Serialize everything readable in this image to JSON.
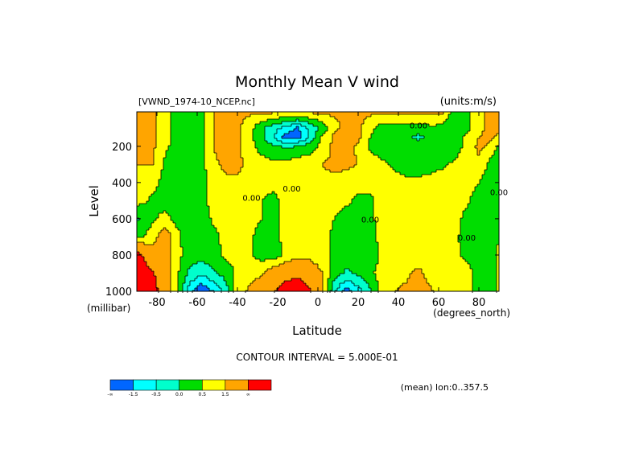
{
  "chart_data": {
    "type": "heatmap",
    "title": "Monthly Mean V wind",
    "dataset_label": "[VWND_1974-10_NCEP.nc]",
    "units_label": "(units:m/s)",
    "xlabel": "Latitude",
    "x_units": "(degrees_north)",
    "ylabel": "Level",
    "y_units": "(millibar)",
    "xlim": [
      -90,
      90
    ],
    "ylim": [
      1000,
      10
    ],
    "x_ticks": [
      -80,
      -60,
      -40,
      -20,
      0,
      20,
      40,
      60,
      80
    ],
    "x_tick_labels": [
      "-80",
      "-60",
      "-40",
      "-20",
      "0",
      "20",
      "40",
      "60",
      "80"
    ],
    "y_ticks": [
      200,
      400,
      600,
      800,
      1000
    ],
    "y_tick_labels": [
      "200",
      "400",
      "600",
      "800",
      "1000"
    ],
    "contour_interval_text": "CONTOUR INTERVAL = 5.000E-01",
    "average_text": "(mean) lon:0..357.5",
    "contour_labels": [
      {
        "text": "0.00",
        "lat": 50,
        "level": 100
      },
      {
        "text": "0.00",
        "lat": -33,
        "level": 500
      },
      {
        "text": "0.00",
        "lat": -13,
        "level": 450
      },
      {
        "text": "0.00",
        "lat": 26,
        "level": 620
      },
      {
        "text": "0.00",
        "lat": 74,
        "level": 720
      },
      {
        "text": "0.00",
        "lat": 90,
        "level": 470
      }
    ],
    "legend": {
      "tick_labels": [
        "-∞",
        "-1.5",
        "-0.5",
        "0.0",
        "0.5",
        "1.5",
        "∞"
      ],
      "bins": [
        {
          "from": "-∞",
          "to": "-1.5",
          "color": "#0066ff"
        },
        {
          "from": "-1.5",
          "to": "-1.0",
          "color": "#00ffff"
        },
        {
          "from": "-1.0",
          "to": "-0.5",
          "color": "#00ffcc"
        },
        {
          "from": "-0.5",
          "to": "0.0",
          "color": "#00dd00"
        },
        {
          "from": "0.0",
          "to": "0.5",
          "color": "#ffff00"
        },
        {
          "from": "0.5",
          "to": "1.5",
          "color": "#ffa500"
        },
        {
          "from": "1.5",
          "to": "∞",
          "color": "#ff0000"
        }
      ]
    },
    "fill_levels": [
      {
        "threshold": -1.5,
        "color": "#0066ff"
      },
      {
        "threshold": -1.0,
        "color": "#00ffff"
      },
      {
        "threshold": -0.5,
        "color": "#00ffcc"
      },
      {
        "threshold": 0.0,
        "color": "#00dd00"
      },
      {
        "threshold": 0.5,
        "color": "#ffff00"
      },
      {
        "threshold": 1.5,
        "color": "#ffa500"
      },
      {
        "threshold": 9999,
        "color": "#ff0000"
      }
    ],
    "field": {
      "lat": [
        -90,
        -82,
        -76,
        -70,
        -64,
        -58,
        -52,
        -46,
        -40,
        -34,
        -28,
        -22,
        -16,
        -10,
        -4,
        2,
        8,
        14,
        20,
        26,
        32,
        38,
        44,
        50,
        56,
        62,
        68,
        74,
        80,
        86,
        90
      ],
      "level": [
        10,
        100,
        150,
        200,
        300,
        400,
        500,
        600,
        700,
        800,
        900,
        1000
      ],
      "values": [
        [
          0.55,
          0.6,
          0.2,
          -0.2,
          -0.4,
          -0.2,
          0.5,
          0.6,
          0.6,
          0.6,
          0.6,
          0.6,
          0.6,
          0.6,
          0.6,
          0.6,
          0.6,
          0.6,
          0.6,
          0.6,
          0.6,
          0.6,
          0.6,
          0.6,
          0.6,
          0.6,
          -0.4,
          -0.2,
          0.4,
          0.6,
          0.6
        ],
        [
          0.55,
          0.6,
          0.2,
          -0.2,
          -0.3,
          -0.2,
          0.5,
          0.6,
          0.6,
          0.2,
          -0.4,
          -0.8,
          -1.2,
          -1.6,
          -0.9,
          -0.3,
          0.3,
          0.7,
          0.6,
          0.2,
          -0.3,
          -0.3,
          -0.3,
          -0.3,
          -0.1,
          -0.2,
          -0.4,
          -0.2,
          0.4,
          0.6,
          0.6
        ],
        [
          0.55,
          0.6,
          0.2,
          -0.2,
          -0.2,
          -0.2,
          0.5,
          0.6,
          0.6,
          0.2,
          -0.4,
          -1.0,
          -1.7,
          -1.7,
          -0.9,
          0.1,
          0.6,
          1.0,
          0.6,
          0.0,
          -0.3,
          -0.3,
          -0.4,
          -0.6,
          -0.4,
          -0.2,
          -0.3,
          0.2,
          0.5,
          0.6,
          0.4
        ],
        [
          0.55,
          0.6,
          0.1,
          -0.2,
          -0.2,
          -0.2,
          0.5,
          0.7,
          0.6,
          0.2,
          -0.2,
          -0.4,
          -0.6,
          -0.5,
          -0.3,
          0.2,
          0.6,
          0.7,
          0.4,
          -0.1,
          -0.3,
          -0.4,
          -0.4,
          -0.3,
          -0.3,
          -0.2,
          -0.3,
          0.2,
          0.6,
          0.4,
          -0.2
        ],
        [
          0.5,
          0.5,
          -0.1,
          -0.3,
          -0.2,
          -0.2,
          0.4,
          0.6,
          0.6,
          0.4,
          0.2,
          0.1,
          0.2,
          0.3,
          0.4,
          0.5,
          0.6,
          0.6,
          0.5,
          0.3,
          0.1,
          -0.1,
          -0.2,
          -0.2,
          -0.2,
          -0.1,
          0.1,
          0.4,
          0.4,
          -0.2,
          -0.4
        ],
        [
          0.3,
          0.2,
          -0.2,
          -0.3,
          -0.2,
          -0.2,
          0.2,
          0.4,
          0.4,
          0.3,
          0.2,
          0.2,
          0.3,
          0.35,
          0.4,
          0.4,
          0.4,
          0.3,
          0.2,
          0.2,
          0.3,
          0.2,
          0.1,
          0.1,
          0.2,
          0.3,
          0.4,
          0.3,
          0.0,
          -0.3,
          -0.4
        ],
        [
          0.2,
          -0.1,
          -0.3,
          -0.2,
          -0.2,
          -0.2,
          0.2,
          0.3,
          0.3,
          0.2,
          0.0,
          -0.2,
          0.3,
          0.4,
          0.4,
          0.3,
          0.2,
          0.1,
          -0.1,
          -0.1,
          0.2,
          0.3,
          0.1,
          0.1,
          0.3,
          0.4,
          0.4,
          0.1,
          -0.3,
          -0.3,
          -0.3
        ],
        [
          -0.6,
          -0.1,
          0.2,
          -0.2,
          -0.3,
          -0.3,
          0.1,
          0.3,
          0.3,
          0.2,
          0.0,
          -0.2,
          0.3,
          0.3,
          0.3,
          0.2,
          0.0,
          -0.2,
          -0.3,
          -0.1,
          0.2,
          0.3,
          0.2,
          0.2,
          0.3,
          0.4,
          0.2,
          -0.2,
          -0.4,
          -0.2,
          -0.1
        ],
        [
          -0.2,
          0.3,
          0.9,
          0.2,
          -0.4,
          -0.4,
          -0.2,
          0.2,
          0.3,
          0.1,
          -0.2,
          -0.2,
          0.2,
          0.3,
          0.3,
          0.2,
          -0.1,
          -0.3,
          -0.3,
          -0.2,
          0.2,
          0.4,
          0.3,
          0.3,
          0.3,
          0.3,
          0.1,
          -0.2,
          -0.3,
          -0.2,
          -0.1
        ],
        [
          1.8,
          0.8,
          0.7,
          0.2,
          -0.3,
          -0.3,
          -0.2,
          0.1,
          0.2,
          0.1,
          -0.2,
          -0.3,
          0.1,
          0.3,
          0.3,
          0.2,
          -0.1,
          -0.3,
          -0.3,
          -0.3,
          0.1,
          0.2,
          0.1,
          0.0,
          0.1,
          0.0,
          0.1,
          -0.1,
          -0.3,
          -0.3,
          0.2
        ],
        [
          2.1,
          1.6,
          0.8,
          0.1,
          -0.6,
          -0.9,
          -0.6,
          -0.3,
          0.1,
          0.3,
          0.4,
          0.9,
          1.2,
          1.3,
          1.0,
          0.5,
          -0.2,
          -0.6,
          -0.4,
          -0.1,
          0.2,
          0.3,
          0.4,
          0.7,
          0.2,
          0.0,
          0.2,
          0.2,
          -0.2,
          -0.3,
          0.1
        ],
        [
          2.4,
          1.9,
          0.9,
          0.1,
          -1.3,
          -1.9,
          -1.5,
          -0.8,
          0.3,
          0.6,
          0.9,
          1.5,
          1.9,
          2.1,
          1.6,
          0.7,
          -0.9,
          -1.7,
          -1.2,
          -0.6,
          0.3,
          0.5,
          0.6,
          0.8,
          0.6,
          0.1,
          0.3,
          0.2,
          -0.2,
          -0.3,
          0.1
        ]
      ]
    }
  }
}
